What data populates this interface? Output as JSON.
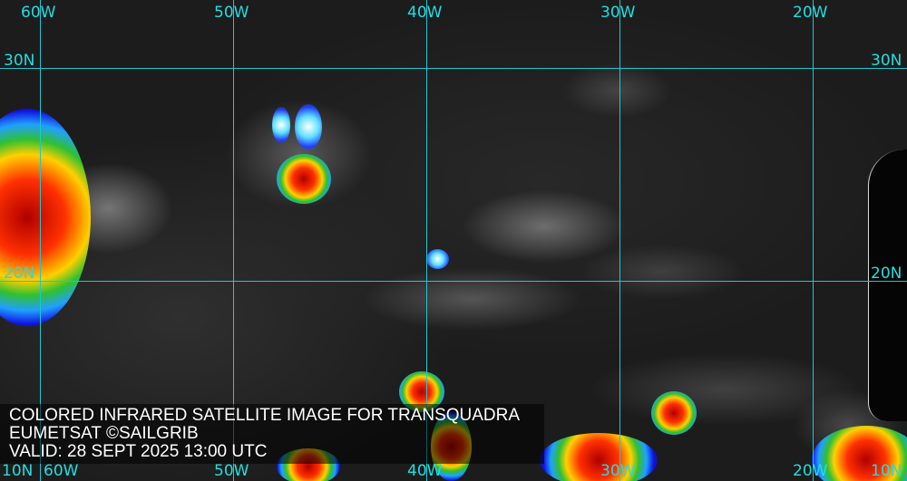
{
  "map": {
    "title": "COLORED INFRARED SATELLITE IMAGE FOR TRANSQUADRA",
    "source": "EUMETSAT ©SAILGRIB",
    "valid": "VALID:  28 SEPT 2025 13:00 UTC",
    "longitude_labels": [
      "60W",
      "50W",
      "40W",
      "30W",
      "20W"
    ],
    "latitude_labels": [
      "30N",
      "20N",
      "10N"
    ],
    "grid_color": "#1ec8d0",
    "colormap": [
      "#1010e0",
      "#20a0ff",
      "#30c030",
      "#ffd000",
      "#ff3000",
      "#b00000"
    ]
  }
}
